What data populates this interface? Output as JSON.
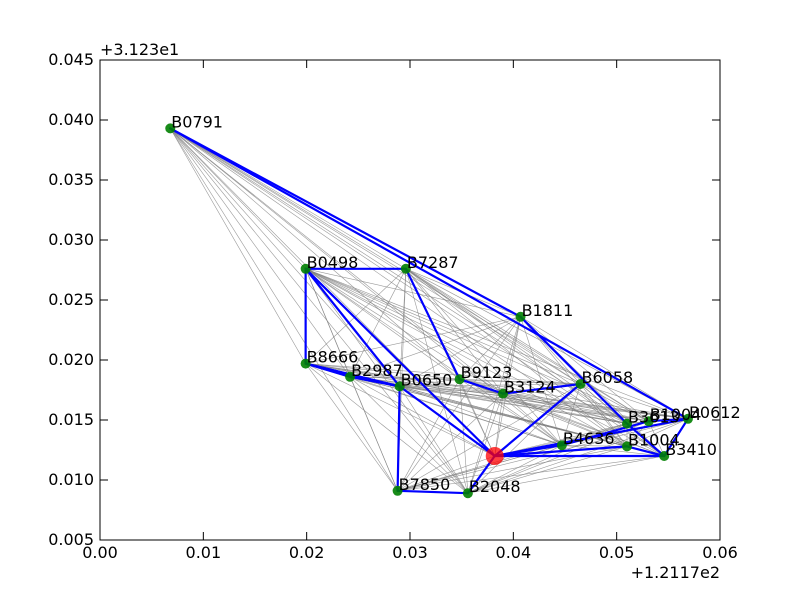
{
  "chart_data": {
    "type": "scatter",
    "title": "",
    "xlabel": "",
    "ylabel": "",
    "x_offset_label": "+1.2117e2",
    "y_offset_label": "+3.123e1",
    "xlim": [
      0.0,
      0.06
    ],
    "ylim": [
      0.005,
      0.045
    ],
    "x_ticks": [
      "0.00",
      "0.01",
      "0.02",
      "0.03",
      "0.04",
      "0.05",
      "0.06"
    ],
    "y_ticks": [
      "0.005",
      "0.010",
      "0.015",
      "0.020",
      "0.025",
      "0.030",
      "0.035",
      "0.040",
      "0.045"
    ],
    "grid": false,
    "colors": {
      "node": "#008000",
      "highlight": "#ff0000",
      "route": "#0000ff",
      "background_edges": "#808080"
    },
    "nodes": [
      {
        "name": "B0791",
        "x": 0.0068,
        "y": 0.0393,
        "color": "green"
      },
      {
        "name": "B0498",
        "x": 0.0199,
        "y": 0.0276,
        "color": "green"
      },
      {
        "name": "B7287",
        "x": 0.0296,
        "y": 0.0276,
        "color": "green"
      },
      {
        "name": "B1811",
        "x": 0.0407,
        "y": 0.0236,
        "color": "green"
      },
      {
        "name": "B8666",
        "x": 0.0199,
        "y": 0.0197,
        "color": "green"
      },
      {
        "name": "B2987",
        "x": 0.0242,
        "y": 0.0186,
        "color": "green"
      },
      {
        "name": "B0650",
        "x": 0.029,
        "y": 0.0178,
        "color": "green"
      },
      {
        "name": "B9123",
        "x": 0.0348,
        "y": 0.0184,
        "color": "green"
      },
      {
        "name": "B3124",
        "x": 0.039,
        "y": 0.0172,
        "color": "green"
      },
      {
        "name": "B6058",
        "x": 0.0465,
        "y": 0.018,
        "color": "green"
      },
      {
        "name": "B3613",
        "x": 0.051,
        "y": 0.0147,
        "color": "green"
      },
      {
        "name": "B1004",
        "x": 0.0531,
        "y": 0.0149,
        "color": "green"
      },
      {
        "name": "B0612",
        "x": 0.0569,
        "y": 0.0151,
        "color": "green"
      },
      {
        "name": "B4636",
        "x": 0.0447,
        "y": 0.0129,
        "color": "green"
      },
      {
        "name": "B1004",
        "x": 0.051,
        "y": 0.0128,
        "color": "green"
      },
      {
        "name": "B3410",
        "x": 0.0546,
        "y": 0.012,
        "color": "green"
      },
      {
        "name": "B7850",
        "x": 0.0288,
        "y": 0.0091,
        "color": "green"
      },
      {
        "name": "B2048",
        "x": 0.0356,
        "y": 0.0089,
        "color": "green"
      },
      {
        "name": "",
        "x": 0.0382,
        "y": 0.012,
        "color": "red"
      }
    ],
    "route": [
      [
        0.0068,
        0.0393
      ],
      [
        0.0569,
        0.0151
      ],
      [
        0.0546,
        0.012
      ],
      [
        0.0382,
        0.012
      ],
      [
        0.0447,
        0.0129
      ],
      [
        0.0531,
        0.0149
      ],
      [
        0.0569,
        0.0151
      ],
      [
        0.0382,
        0.012
      ],
      [
        0.029,
        0.0178
      ],
      [
        0.0199,
        0.0197
      ],
      [
        0.0199,
        0.0276
      ],
      [
        0.0296,
        0.0276
      ],
      [
        0.0348,
        0.0184
      ],
      [
        0.039,
        0.0172
      ],
      [
        0.0465,
        0.018
      ],
      [
        0.0382,
        0.012
      ],
      [
        0.0356,
        0.0089
      ],
      [
        0.0288,
        0.0091
      ],
      [
        0.029,
        0.0178
      ],
      [
        0.0199,
        0.0197
      ],
      [
        0.0242,
        0.0186
      ],
      [
        0.029,
        0.0178
      ],
      [
        0.0199,
        0.0276
      ],
      [
        0.0382,
        0.012
      ],
      [
        0.051,
        0.0128
      ],
      [
        0.0546,
        0.012
      ],
      [
        0.051,
        0.0147
      ],
      [
        0.0407,
        0.0236
      ],
      [
        0.0068,
        0.0393
      ]
    ]
  }
}
